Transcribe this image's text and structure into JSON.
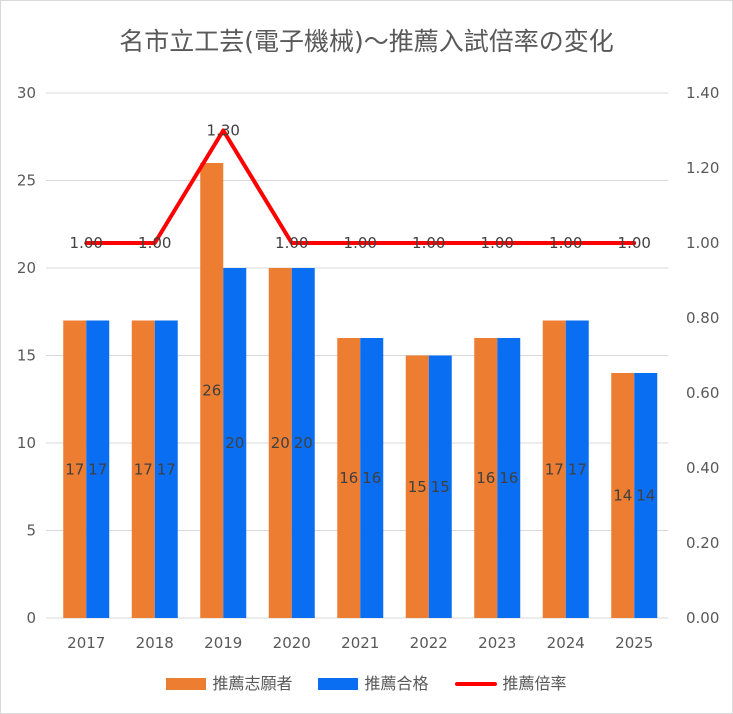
{
  "chart_data": {
    "type": "bar",
    "title": "名市立工芸(電子機械)～推薦入試倍率の変化",
    "categories": [
      "2017",
      "2018",
      "2019",
      "2020",
      "2021",
      "2022",
      "2023",
      "2024",
      "2025"
    ],
    "series": [
      {
        "name": "推薦志願者",
        "type": "bar",
        "axis": "left",
        "color": "#ED7D31",
        "values": [
          17,
          17,
          26,
          20,
          16,
          15,
          16,
          17,
          14
        ]
      },
      {
        "name": "推薦合格",
        "type": "bar",
        "axis": "left",
        "color": "#0A6EF2",
        "values": [
          17,
          17,
          20,
          20,
          16,
          15,
          16,
          17,
          14
        ]
      },
      {
        "name": "推薦倍率",
        "type": "line",
        "axis": "right",
        "color": "#FF0000",
        "values": [
          1.0,
          1.0,
          1.3,
          1.0,
          1.0,
          1.0,
          1.0,
          1.0,
          1.0
        ]
      }
    ],
    "y_left": {
      "ylim": [
        0,
        30
      ],
      "tick_labels": [
        "0",
        "5",
        "10",
        "15",
        "20",
        "25",
        "30"
      ]
    },
    "y_right": {
      "ylim": [
        0,
        1.4
      ],
      "tick_labels": [
        "0.00",
        "0.20",
        "0.40",
        "0.60",
        "0.80",
        "1.00",
        "1.20",
        "1.40"
      ]
    },
    "grid": true,
    "data_labels": true,
    "legend_position": "bottom"
  }
}
